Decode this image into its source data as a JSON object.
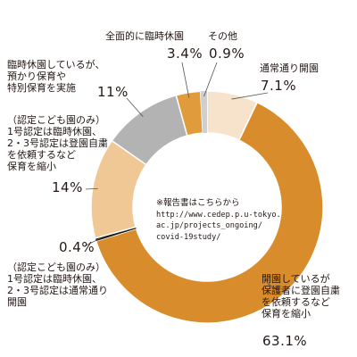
{
  "chart_data": {
    "type": "pie",
    "donut": true,
    "colors_note": "slice colors listed per slice",
    "slices": [
      {
        "label": "通常通り開園",
        "value": 7.1,
        "display": "7.1%",
        "color": "#f7e3cc"
      },
      {
        "label": "開園しているが保護者に登園自粛を依頼するなど保育を縮小",
        "value": 63.1,
        "display": "63.1%",
        "color": "#d98c2b"
      },
      {
        "label": "（認定こども園のみ）1号認定は臨時休園、2・3号認定は通常通り開園",
        "value": 0.4,
        "display": "0.4%",
        "color": "#1a1a1a"
      },
      {
        "label": "（認定こども園のみ）1号認定は臨時休園、2・3号認定は登園自粛を依頼するなど保育を縮小",
        "value": 14,
        "display": "14%",
        "color": "#f0c896"
      },
      {
        "label": "臨時休園しているが、預かり保育や特別保育を実施",
        "value": 11,
        "display": "11%",
        "color": "#b3b3b3"
      },
      {
        "label": "全面的に臨時休園",
        "value": 3.4,
        "display": "3.4%",
        "color": "#e09b3d"
      },
      {
        "label": "その他",
        "value": 0.9,
        "display": "0.9%",
        "color": "#cfcfcf"
      }
    ],
    "labels": {
      "tsujo": [
        "通常通り開園"
      ],
      "shukusho": [
        "開園しているが",
        "保護者に登園自粛",
        "を依頼するなど",
        "保育を縮小"
      ],
      "kodomo1": [
        "（認定こども園のみ）",
        "1号認定は臨時休園、",
        "2・3号認定は通常通り",
        "開園"
      ],
      "kodomo2": [
        "（認定こども園のみ）",
        "1号認定は臨時休園、",
        "2・3号認定は登園自粛",
        "を依頼するなど",
        "保育を縮小"
      ],
      "azukari": [
        "臨時休園しているが、",
        "預かり保育や",
        "特別保育を実施"
      ],
      "zenmen": [
        "全面的に臨時休園"
      ],
      "sonota": [
        "その他"
      ]
    },
    "annotation": {
      "line1": "※報告書はこちらから",
      "url": [
        "http://www.cedep.p.u-tokyo.",
        "ac.jp/projects_ongoing/",
        "covid-19study/"
      ]
    }
  }
}
